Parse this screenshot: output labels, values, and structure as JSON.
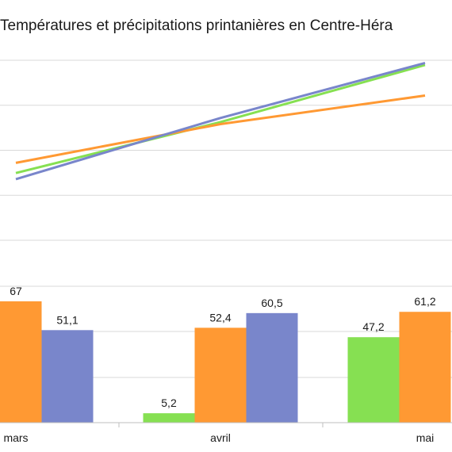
{
  "chart_data": {
    "title": "Températures et précipitations printanières en Centre-Héra",
    "type": "bar+line",
    "categories": [
      "mars",
      "avril",
      "mai"
    ],
    "grid": true,
    "colors": {
      "green": "#86e052",
      "orange": "#ff9933",
      "blue": "#7986cb"
    },
    "bar_panel": {
      "type": "bar",
      "ylim": [
        0,
        80
      ],
      "series": [
        {
          "color": "#86e052",
          "values": [
            null,
            5.2,
            47.2
          ]
        },
        {
          "color": "#ff9933",
          "values": [
            67,
            52.4,
            61.2
          ]
        },
        {
          "color": "#7986cb",
          "values": [
            51.1,
            60.5,
            null
          ]
        }
      ],
      "data_labels": [
        [
          "",
          "5,2",
          "47,2"
        ],
        [
          "67",
          "52,4",
          "61,2"
        ],
        [
          "51,1",
          "60,5",
          ""
        ]
      ]
    },
    "line_panel": {
      "type": "line",
      "ylim": [
        0,
        100
      ],
      "series": [
        {
          "color": "#86e052",
          "values": [
            33,
            58,
            86
          ]
        },
        {
          "color": "#ff9933",
          "values": [
            38,
            57,
            71
          ]
        },
        {
          "color": "#7986cb",
          "values": [
            30,
            60,
            87
          ]
        }
      ]
    }
  }
}
